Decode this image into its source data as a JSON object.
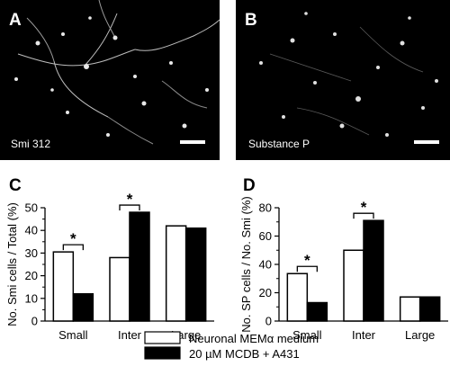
{
  "panels": {
    "a": {
      "letter": "A",
      "caption": "Smi 312"
    },
    "b": {
      "letter": "B",
      "caption": "Substance P"
    }
  },
  "legend": {
    "items": [
      {
        "label": "Neuronal MEMα medium",
        "fill": "#ffffff"
      },
      {
        "label": "20 µM MCDB + A431",
        "fill": "#000000"
      }
    ]
  },
  "colors": {
    "photo_background": "#000000",
    "bar_open": "#ffffff",
    "bar_filled": "#000000"
  },
  "chart_data": [
    {
      "type": "bar",
      "panel": "C",
      "categories": [
        "Small",
        "Inter",
        "Large"
      ],
      "series": [
        {
          "values": [
            30.5,
            28,
            42
          ]
        },
        {
          "values": [
            12,
            48,
            41
          ]
        }
      ],
      "xlabel": "",
      "ylabel": "No. Smi cells / Total (%)",
      "ylim": [
        0,
        50
      ],
      "yticks": [
        "0",
        "10",
        "20",
        "30",
        "40",
        "50"
      ],
      "annotations": [
        {
          "text": "*",
          "category": "Small"
        },
        {
          "text": "*",
          "category": "Inter"
        }
      ]
    },
    {
      "type": "bar",
      "panel": "D",
      "categories": [
        "Small",
        "Inter",
        "Large"
      ],
      "series": [
        {
          "values": [
            33.5,
            50,
            17
          ]
        },
        {
          "values": [
            13,
            71,
            17
          ]
        }
      ],
      "xlabel": "",
      "ylabel": "No. SP cells / No. Smi (%)",
      "ylim": [
        0,
        80
      ],
      "yticks": [
        "0",
        "20",
        "40",
        "60",
        "80"
      ],
      "annotations": [
        {
          "text": "*",
          "category": "Small"
        },
        {
          "text": "*",
          "category": "Inter"
        }
      ]
    }
  ]
}
